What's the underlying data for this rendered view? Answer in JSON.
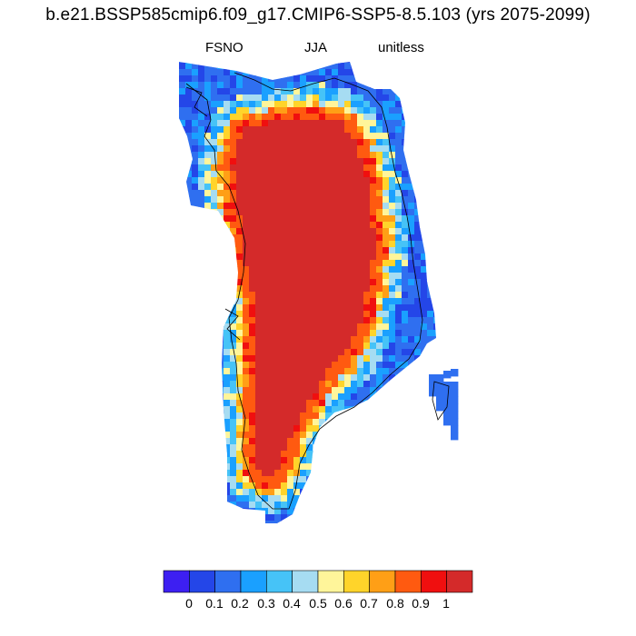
{
  "chart_data": {
    "type": "heatmap",
    "title": "b.e21.BSSP585cmip6.f09_g17.CMIP6-SSP5-8.5.103 (yrs 2075-2099)",
    "variable": "FSNO",
    "season": "JJA",
    "units": "unitless",
    "region": "Greenland",
    "colorbar": {
      "levels": [
        "0",
        "0.1",
        "0.2",
        "0.3",
        "0.4",
        "0.5",
        "0.6",
        "0.7",
        "0.8",
        "0.9",
        "1"
      ],
      "colors": [
        "#3d1ff2",
        "#2446e8",
        "#2f6ff0",
        "#1aa0ff",
        "#46c3f7",
        "#a6dcf2",
        "#fff59a",
        "#ffd42a",
        "#ff9f16",
        "#ff5a10",
        "#f00f0f",
        "#d42a2a"
      ]
    },
    "summary": {
      "interior_ice_sheet": "1",
      "ice_sheet_margin": "0.7 - 1",
      "coastal_fringe": "0 - 0.5"
    }
  }
}
